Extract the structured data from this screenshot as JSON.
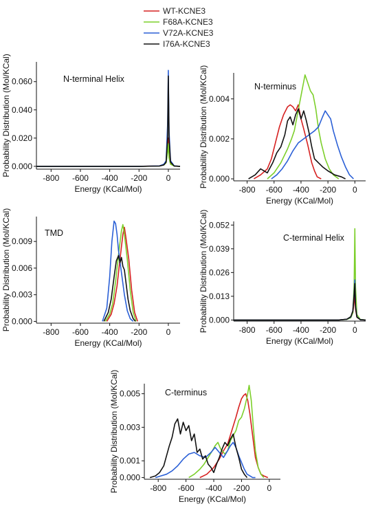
{
  "legend": [
    {
      "name": "WT-KCNE3",
      "color": "#d62020"
    },
    {
      "name": "F68A-KCNE3",
      "color": "#7ccf2a"
    },
    {
      "name": "V72A-KCNE3",
      "color": "#2a5fd6"
    },
    {
      "name": "I76A-KCNE3",
      "color": "#111111"
    }
  ],
  "chart_data": [
    {
      "type": "line",
      "title": "N-terminal Helix",
      "xlabel": "Energy (KCal/Mol)",
      "ylabel": "Probability Distribution (Mol/KCal)",
      "xlim": [
        -900,
        80
      ],
      "ylim": [
        -0.002,
        0.074
      ],
      "xticks": [
        -800,
        -600,
        -400,
        -200,
        0
      ],
      "yticks": [
        0.0,
        0.02,
        0.04,
        0.06
      ],
      "ytick_labels": [
        "0.000",
        "0.020",
        "0.040",
        "0.060"
      ],
      "series": [
        {
          "name": "WT-KCNE3",
          "color": "#d62020",
          "x": [
            -900,
            -200,
            -60,
            -30,
            -15,
            -5,
            0,
            5,
            15,
            40,
            80
          ],
          "y": [
            0,
            0,
            0.0003,
            0.0012,
            0.003,
            0.012,
            0.02,
            0.008,
            0.002,
            0.0002,
            0
          ]
        },
        {
          "name": "F68A-KCNE3",
          "color": "#7ccf2a",
          "x": [
            -900,
            -200,
            -60,
            -30,
            -15,
            -5,
            0,
            5,
            15,
            40,
            80
          ],
          "y": [
            0,
            0,
            0.0002,
            0.001,
            0.0025,
            0.01,
            0.016,
            0.006,
            0.0015,
            0.0002,
            0
          ]
        },
        {
          "name": "V72A-KCNE3",
          "color": "#2a5fd6",
          "x": [
            -900,
            -200,
            -60,
            -30,
            -15,
            -5,
            0,
            5,
            15,
            40,
            80
          ],
          "y": [
            0,
            0,
            0.0003,
            0.0015,
            0.004,
            0.03,
            0.068,
            0.025,
            0.004,
            0.0003,
            0
          ]
        },
        {
          "name": "I76A-KCNE3",
          "color": "#111111",
          "x": [
            -900,
            -200,
            -60,
            -30,
            -15,
            -5,
            0,
            5,
            15,
            40,
            80
          ],
          "y": [
            0,
            0,
            0.0002,
            0.001,
            0.003,
            0.02,
            0.064,
            0.02,
            0.003,
            0.0002,
            0
          ]
        }
      ]
    },
    {
      "type": "line",
      "title": "N-terminus",
      "xlabel": "Energy (KCal/Mol)",
      "ylabel": "Probability Distribution (Mol/KCal)",
      "xlim": [
        -900,
        80
      ],
      "ylim": [
        -0.0001,
        0.0053
      ],
      "xticks": [
        -800,
        -600,
        -400,
        -200,
        0
      ],
      "yticks": [
        0.0,
        0.002,
        0.004
      ],
      "ytick_labels": [
        "0.000",
        "0.002",
        "0.004"
      ],
      "series": [
        {
          "name": "WT-KCNE3",
          "color": "#d62020",
          "x": [
            -750,
            -700,
            -650,
            -620,
            -590,
            -560,
            -530,
            -500,
            -480,
            -460,
            -440,
            -420,
            -400,
            -380,
            -350,
            -320,
            -300,
            -280,
            -250
          ],
          "y": [
            0,
            0.0002,
            0.0005,
            0.001,
            0.0018,
            0.0026,
            0.0032,
            0.0036,
            0.0037,
            0.0036,
            0.0034,
            0.0037,
            0.003,
            0.0025,
            0.0017,
            0.0008,
            0.0004,
            0.0001,
            0
          ]
        },
        {
          "name": "F68A-KCNE3",
          "color": "#7ccf2a",
          "x": [
            -650,
            -600,
            -550,
            -500,
            -470,
            -450,
            -430,
            -410,
            -390,
            -370,
            -350,
            -330,
            -310,
            -290,
            -270,
            -250,
            -220,
            -190,
            -160,
            -120
          ],
          "y": [
            0,
            0.0003,
            0.0008,
            0.0015,
            0.002,
            0.0024,
            0.0031,
            0.0038,
            0.0045,
            0.0052,
            0.0048,
            0.0044,
            0.0042,
            0.0035,
            0.0025,
            0.0018,
            0.001,
            0.0005,
            0.0002,
            0
          ]
        },
        {
          "name": "V72A-KCNE3",
          "color": "#2a5fd6",
          "x": [
            -620,
            -580,
            -540,
            -500,
            -460,
            -420,
            -380,
            -340,
            -300,
            -270,
            -240,
            -220,
            -200,
            -180,
            -160,
            -130,
            -100,
            -70,
            -40,
            -10
          ],
          "y": [
            0,
            0.0002,
            0.0005,
            0.0009,
            0.0014,
            0.0018,
            0.002,
            0.0022,
            0.0024,
            0.0026,
            0.0031,
            0.0034,
            0.0032,
            0.003,
            0.0024,
            0.0017,
            0.0011,
            0.0006,
            0.0002,
            0
          ]
        },
        {
          "name": "I76A-KCNE3",
          "color": "#111111",
          "x": [
            -790,
            -740,
            -700,
            -650,
            -610,
            -580,
            -550,
            -520,
            -500,
            -480,
            -460,
            -440,
            -420,
            -400,
            -380,
            -360,
            -340,
            -320,
            -300,
            -270,
            -240,
            -200,
            -150,
            -100,
            -70
          ],
          "y": [
            0,
            0.0002,
            0.0005,
            0.0003,
            0.0008,
            0.0013,
            0.0016,
            0.0022,
            0.0029,
            0.0031,
            0.0027,
            0.0032,
            0.0035,
            0.003,
            0.0034,
            0.0029,
            0.0023,
            0.0016,
            0.001,
            0.0008,
            0.0006,
            0.0004,
            0.0002,
            0.0001,
            0
          ]
        }
      ]
    },
    {
      "type": "line",
      "title": "TMD",
      "xlabel": "Energy (KCal/Mol)",
      "ylabel": "Probability Distribution (Mol/KCal)",
      "xlim": [
        -900,
        80
      ],
      "ylim": [
        -0.0002,
        0.0118
      ],
      "xticks": [
        -800,
        -600,
        -400,
        -200,
        0
      ],
      "yticks": [
        0.0,
        0.003,
        0.006,
        0.009
      ],
      "ytick_labels": [
        "0.000",
        "0.003",
        "0.006",
        "0.009"
      ],
      "series": [
        {
          "name": "WT-KCNE3",
          "color": "#d62020",
          "x": [
            -420,
            -390,
            -370,
            -350,
            -330,
            -310,
            -300,
            -290,
            -270,
            -250,
            -230,
            -210
          ],
          "y": [
            0,
            0.0008,
            0.002,
            0.004,
            0.007,
            0.0098,
            0.0106,
            0.0095,
            0.007,
            0.0035,
            0.001,
            0
          ]
        },
        {
          "name": "F68A-KCNE3",
          "color": "#7ccf2a",
          "x": [
            -430,
            -400,
            -380,
            -360,
            -340,
            -320,
            -310,
            -300,
            -280,
            -260,
            -240,
            -220
          ],
          "y": [
            0,
            0.0008,
            0.002,
            0.0045,
            0.0075,
            0.0102,
            0.0109,
            0.0098,
            0.007,
            0.0035,
            0.001,
            0
          ]
        },
        {
          "name": "V72A-KCNE3",
          "color": "#2a5fd6",
          "x": [
            -450,
            -420,
            -400,
            -385,
            -370,
            -360,
            -350,
            -340,
            -320,
            -300,
            -280,
            -260,
            -240
          ],
          "y": [
            0,
            0.0015,
            0.005,
            0.009,
            0.0113,
            0.011,
            0.0098,
            0.008,
            0.0055,
            0.003,
            0.0012,
            0.0003,
            0
          ]
        },
        {
          "name": "I76A-KCNE3",
          "color": "#111111",
          "x": [
            -440,
            -410,
            -390,
            -370,
            -355,
            -340,
            -330,
            -320,
            -310,
            -300,
            -290,
            -275,
            -260,
            -240,
            -225
          ],
          "y": [
            0,
            0.001,
            0.0025,
            0.005,
            0.0068,
            0.0074,
            0.0066,
            0.0072,
            0.0062,
            0.0058,
            0.0045,
            0.0025,
            0.0012,
            0.0003,
            0
          ]
        }
      ]
    },
    {
      "type": "line",
      "title": "C-terminal Helix",
      "xlabel": "Energy (KCal/Mol)",
      "ylabel": "Probability Distribution (Mol/KCal)",
      "xlim": [
        -900,
        80
      ],
      "ylim": [
        -0.0006,
        0.054
      ],
      "xticks": [
        -800,
        -600,
        -400,
        -200,
        0
      ],
      "yticks": [
        0.0,
        0.013,
        0.026,
        0.039,
        0.052
      ],
      "ytick_labels": [
        "0.000",
        "0.013",
        "0.026",
        "0.039",
        "0.052"
      ],
      "series": [
        {
          "name": "WT-KCNE3",
          "color": "#d62020",
          "x": [
            -900,
            -120,
            -60,
            -30,
            -15,
            -5,
            0,
            5,
            15,
            40,
            80
          ],
          "y": [
            0,
            0,
            0.0004,
            0.0015,
            0.004,
            0.01,
            0.014,
            0.006,
            0.0015,
            0.0002,
            0
          ]
        },
        {
          "name": "F68A-KCNE3",
          "color": "#7ccf2a",
          "x": [
            -900,
            -120,
            -60,
            -30,
            -15,
            -5,
            0,
            5,
            15,
            40,
            80
          ],
          "y": [
            0,
            0,
            0.0003,
            0.0012,
            0.004,
            0.02,
            0.05,
            0.018,
            0.003,
            0.0003,
            0
          ]
        },
        {
          "name": "V72A-KCNE3",
          "color": "#2a5fd6",
          "x": [
            -900,
            -120,
            -60,
            -30,
            -15,
            -5,
            0,
            5,
            15,
            40,
            80
          ],
          "y": [
            0,
            0,
            0.0004,
            0.0016,
            0.005,
            0.015,
            0.022,
            0.008,
            0.0018,
            0.0002,
            0
          ]
        },
        {
          "name": "I76A-KCNE3",
          "color": "#111111",
          "x": [
            -900,
            -120,
            -60,
            -30,
            -15,
            -5,
            0,
            5,
            15,
            40,
            80
          ],
          "y": [
            0,
            0,
            0.0004,
            0.0018,
            0.005,
            0.014,
            0.02,
            0.007,
            0.0016,
            0.0002,
            0
          ]
        }
      ]
    },
    {
      "type": "line",
      "title": "C-terminus",
      "xlabel": "Energy (KCal/Mol)",
      "ylabel": "Probability Distribution (Mol/KCal)",
      "xlim": [
        -900,
        80
      ],
      "ylim": [
        -0.0001,
        0.0056
      ],
      "xticks": [
        -800,
        -600,
        -400,
        -200,
        0
      ],
      "yticks": [
        0.0,
        0.001,
        0.003,
        0.005
      ],
      "ytick_labels": [
        "0.000",
        "0.001",
        "0.003",
        "0.005"
      ],
      "series": [
        {
          "name": "WT-KCNE3",
          "color": "#d62020",
          "x": [
            -500,
            -450,
            -400,
            -360,
            -330,
            -300,
            -270,
            -240,
            -220,
            -200,
            -185,
            -170,
            -155,
            -140,
            -120,
            -100,
            -80,
            -60,
            -40,
            -10
          ],
          "y": [
            0,
            0.0002,
            0.0006,
            0.0011,
            0.0016,
            0.002,
            0.0028,
            0.0036,
            0.0042,
            0.0047,
            0.0049,
            0.005,
            0.0046,
            0.0038,
            0.0025,
            0.0012,
            0.0006,
            0.0002,
            0.0001,
            0
          ]
        },
        {
          "name": "F68A-KCNE3",
          "color": "#7ccf2a",
          "x": [
            -580,
            -540,
            -500,
            -470,
            -440,
            -410,
            -390,
            -370,
            -350,
            -320,
            -300,
            -280,
            -260,
            -240,
            -220,
            -200,
            -180,
            -160,
            -145,
            -130,
            -115,
            -100,
            -80,
            -60,
            -40
          ],
          "y": [
            0,
            0.0002,
            0.0005,
            0.0008,
            0.0012,
            0.0016,
            0.0019,
            0.0021,
            0.0017,
            0.0014,
            0.0016,
            0.0022,
            0.0025,
            0.0028,
            0.0034,
            0.0036,
            0.0041,
            0.0048,
            0.0055,
            0.0046,
            0.003,
            0.0016,
            0.0006,
            0.0002,
            0
          ]
        },
        {
          "name": "V72A-KCNE3",
          "color": "#2a5fd6",
          "x": [
            -820,
            -780,
            -740,
            -700,
            -660,
            -620,
            -580,
            -540,
            -500,
            -460,
            -420,
            -390,
            -370,
            -350,
            -330,
            -300,
            -280,
            -260,
            -240,
            -220,
            -200,
            -180,
            -160,
            -140,
            -120,
            -100
          ],
          "y": [
            0,
            0.0001,
            0.0002,
            0.0004,
            0.0007,
            0.0011,
            0.0014,
            0.0015,
            0.0013,
            0.0012,
            0.0015,
            0.0018,
            0.0016,
            0.0014,
            0.0012,
            0.0016,
            0.0019,
            0.0021,
            0.0018,
            0.0013,
            0.0009,
            0.0005,
            0.0002,
            0.0001,
            0,
            0
          ]
        },
        {
          "name": "I76A-KCNE3",
          "color": "#111111",
          "x": [
            -860,
            -820,
            -790,
            -760,
            -740,
            -720,
            -700,
            -680,
            -660,
            -640,
            -620,
            -600,
            -580,
            -560,
            -540,
            -520,
            -500,
            -480,
            -460,
            -440,
            -420,
            -400,
            -380,
            -360,
            -340,
            -320,
            -300,
            -280,
            -260,
            -240,
            -220,
            -200,
            -180,
            -160
          ],
          "y": [
            0,
            0.0001,
            0.0003,
            0.0007,
            0.0013,
            0.0019,
            0.0024,
            0.0032,
            0.0035,
            0.0026,
            0.0033,
            0.0028,
            0.0031,
            0.0022,
            0.0026,
            0.0015,
            0.0017,
            0.0011,
            0.0013,
            0.0008,
            0.0006,
            0.0003,
            0.0008,
            0.0012,
            0.0017,
            0.0021,
            0.0019,
            0.0023,
            0.0026,
            0.0018,
            0.0012,
            0.0005,
            0.0002,
            0
          ]
        }
      ]
    }
  ]
}
